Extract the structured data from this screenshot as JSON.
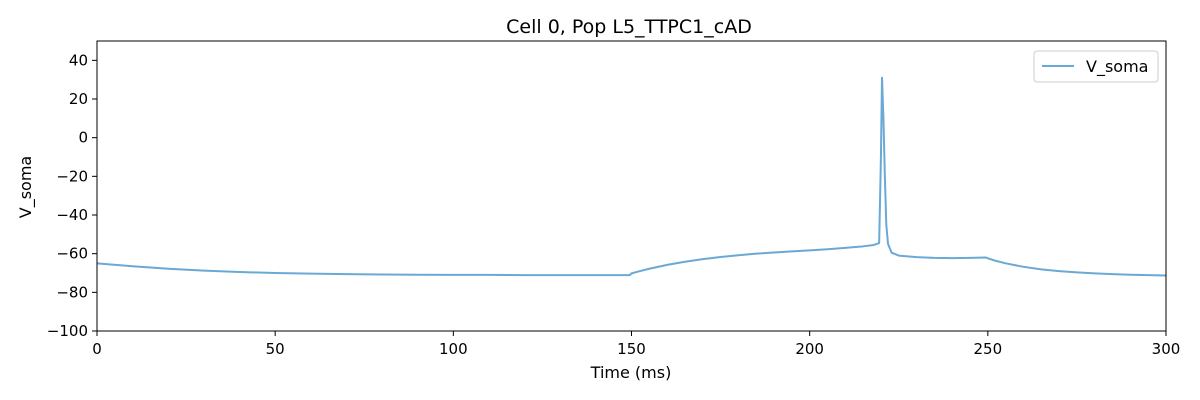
{
  "chart_data": {
    "type": "line",
    "title": "Cell 0, Pop L5_TTPC1_cAD",
    "xlabel": "Time (ms)",
    "ylabel": "V_soma",
    "xlim": [
      0,
      300
    ],
    "ylim": [
      -100,
      50
    ],
    "xticks": [
      0,
      50,
      100,
      150,
      200,
      250,
      300
    ],
    "yticks": [
      -100,
      -80,
      -60,
      -40,
      -20,
      0,
      20,
      40
    ],
    "grid": false,
    "legend_position": "top-right",
    "series": [
      {
        "name": "V_soma",
        "color": "#6aa9d6",
        "x": [
          0,
          10,
          20,
          30,
          40,
          50,
          60,
          70,
          80,
          90,
          100,
          110,
          120,
          130,
          140,
          149.5,
          150,
          152,
          155,
          160,
          165,
          170,
          175,
          180,
          185,
          190,
          195,
          200,
          205,
          210,
          215,
          218,
          219.5,
          220,
          220.3,
          220.7,
          221.1,
          221.5,
          222,
          223,
          225,
          230,
          235,
          240,
          245,
          249.5,
          250,
          252,
          255,
          260,
          265,
          270,
          275,
          280,
          285,
          290,
          295,
          300
        ],
        "y": [
          -65,
          -66.5,
          -67.8,
          -68.8,
          -69.5,
          -70,
          -70.3,
          -70.6,
          -70.8,
          -70.9,
          -71,
          -71,
          -71.1,
          -71.1,
          -71.1,
          -71.1,
          -70.2,
          -69.2,
          -67.8,
          -65.8,
          -64.2,
          -62.8,
          -61.7,
          -60.8,
          -60,
          -59.4,
          -58.8,
          -58.3,
          -57.7,
          -57,
          -56.2,
          -55.5,
          -54.5,
          -10,
          31,
          10,
          -20,
          -45,
          -55,
          -59.5,
          -61,
          -61.8,
          -62.2,
          -62.3,
          -62.2,
          -62,
          -62.4,
          -63.6,
          -65,
          -66.8,
          -68.1,
          -69,
          -69.7,
          -70.2,
          -70.6,
          -70.9,
          -71.1,
          -71.3
        ]
      }
    ]
  }
}
